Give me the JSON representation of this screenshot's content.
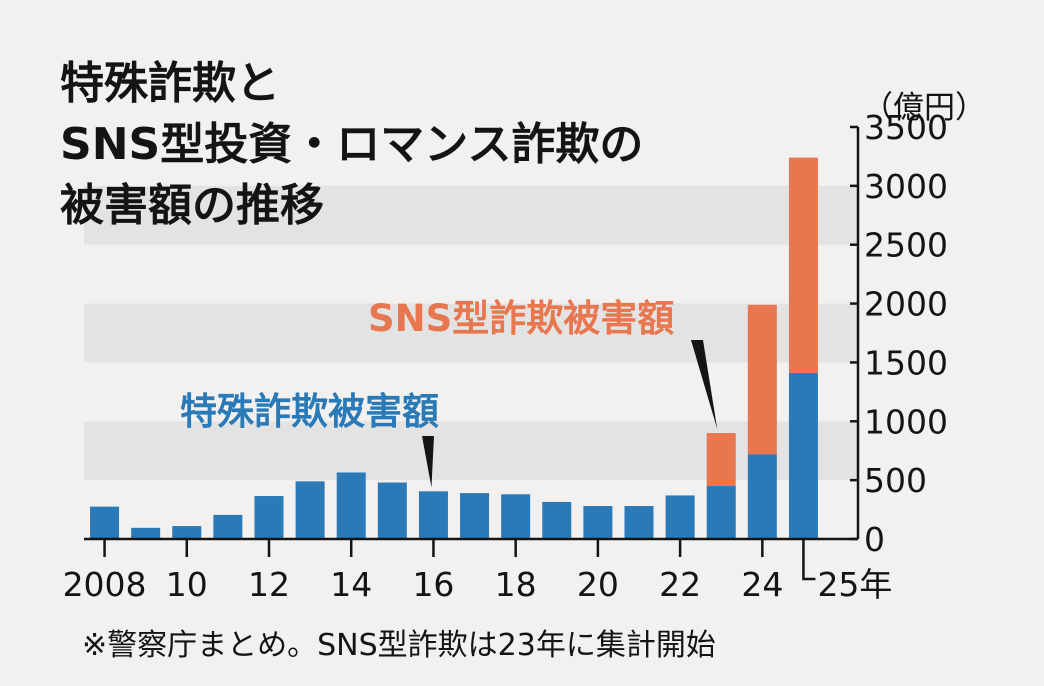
{
  "title_lines": [
    "特殊詐欺と",
    "SNS型投資・ロマンス詐欺の",
    "被害額の推移"
  ],
  "unit_label": "（億円）",
  "footnote": "※警察庁まとめ。SNS型詐欺は23年に集計開始",
  "colors": {
    "special_fraud": "#2a7ab8",
    "sns_fraud": "#e8764f",
    "background": "#f2f1ef",
    "gridband": "#e3e3e3",
    "text": "#141414"
  },
  "chart_data": {
    "type": "bar",
    "stacked": true,
    "title": "特殊詐欺と SNS型投資・ロマンス詐欺の 被害額の推移",
    "ylabel": "（億円）",
    "ylim": [
      0,
      3500
    ],
    "yticks": [
      0,
      500,
      1000,
      1500,
      2000,
      2500,
      3000,
      3500
    ],
    "y_axis_position": "right",
    "years": [
      2008,
      2009,
      2010,
      2011,
      2012,
      2013,
      2014,
      2015,
      2016,
      2017,
      2018,
      2019,
      2020,
      2021,
      2022,
      2023,
      2024,
      2025
    ],
    "xtick_labels": [
      {
        "year": 2008,
        "label": "2008"
      },
      {
        "year": 2010,
        "label": "10"
      },
      {
        "year": 2012,
        "label": "12"
      },
      {
        "year": 2014,
        "label": "14"
      },
      {
        "year": 2016,
        "label": "16"
      },
      {
        "year": 2018,
        "label": "18"
      },
      {
        "year": 2020,
        "label": "20"
      },
      {
        "year": 2022,
        "label": "22"
      },
      {
        "year": 2024,
        "label": "24"
      },
      {
        "year": 2025,
        "label": "25年"
      }
    ],
    "series": [
      {
        "name": "特殊詐欺被害額",
        "color": "#2a7ab8",
        "values": [
          275,
          95,
          110,
          205,
          365,
          490,
          565,
          480,
          405,
          390,
          380,
          315,
          280,
          280,
          370,
          450,
          720,
          1410
        ]
      },
      {
        "name": "SNS型詐欺被害額",
        "color": "#e8764f",
        "values": [
          0,
          0,
          0,
          0,
          0,
          0,
          0,
          0,
          0,
          0,
          0,
          0,
          0,
          0,
          0,
          450,
          1270,
          1830
        ]
      }
    ],
    "annotations": [
      {
        "text": "SNS型詐欺被害額",
        "series": "SNS型詐欺被害額",
        "points_to_year": 2023
      },
      {
        "text": "特殊詐欺被害額",
        "series": "特殊詐欺被害額",
        "points_to_year": 2016
      }
    ],
    "grid": "alternating horizontal bands",
    "legend": "none (direct labels)"
  }
}
